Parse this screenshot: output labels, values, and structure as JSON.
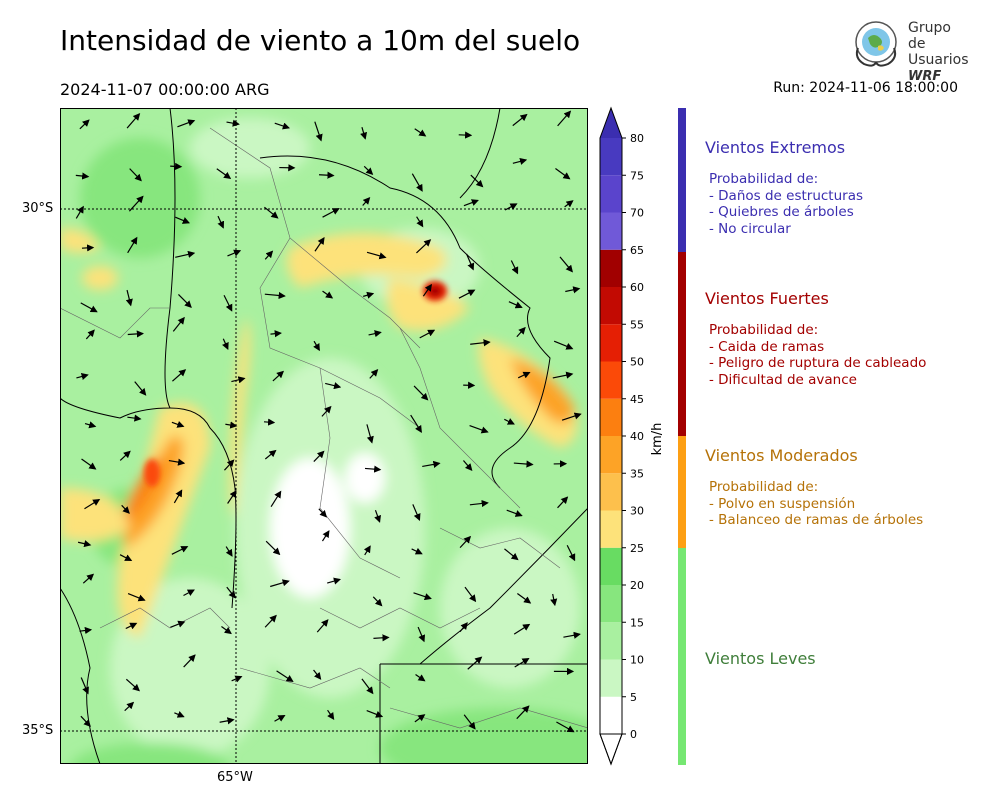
{
  "header": {
    "title": "Intensidad de viento a 10m del suelo",
    "valid_time": "2024-11-07 00:00:00 ARG",
    "run": "Run: 2024-11-06 18:00:00"
  },
  "logo": {
    "line1": "Grupo de",
    "line2": "Usuarios",
    "line3": "WRF"
  },
  "map": {
    "lat_labels": [
      "30°S",
      "35°S"
    ],
    "lon_labels": [
      "65°W"
    ]
  },
  "colorbar": {
    "unit": "km/h",
    "ticks": [
      "0",
      "5",
      "10",
      "15",
      "20",
      "25",
      "30",
      "35",
      "40",
      "45",
      "50",
      "55",
      "60",
      "65",
      "70",
      "75",
      "80"
    ],
    "colors": [
      "#ffffff",
      "#caf7c3",
      "#a9f0a0",
      "#87e67e",
      "#68dc62",
      "#fde27a",
      "#fdc04c",
      "#fda326",
      "#fc7f10",
      "#fb4a08",
      "#e51f04",
      "#c20a02",
      "#a10000",
      "#7059d8",
      "#5a44cc",
      "#483ac0"
    ],
    "extend_color": "#3b2eb0"
  },
  "categories": [
    {
      "key": "extremos",
      "title": "Vientos Extremos",
      "prob": "Probabilidad de:",
      "items": [
        "- Daños de estructuras",
        "- Quiebres de árboles",
        "- No circular"
      ],
      "color": "#3b2eb0",
      "bar": "#3b2eb0"
    },
    {
      "key": "fuertes",
      "title": "Vientos Fuertes",
      "prob": "Probabilidad de:",
      "items": [
        "- Caida de ramas",
        "- Peligro de ruptura de cableado",
        "- Dificultad de avance"
      ],
      "color": "#a30000",
      "bar": "#a30000"
    },
    {
      "key": "moderados",
      "title": "Vientos Moderados",
      "prob": "Probabilidad de:",
      "items": [
        "- Polvo en suspensión",
        "- Balanceo de ramas de árboles"
      ],
      "color": "#b57208",
      "bar": "#fd9f14"
    },
    {
      "key": "leves",
      "title": "Vientos Leves",
      "prob": "",
      "items": [],
      "color": "#3f7e3a",
      "bar": "#76e772"
    }
  ]
}
